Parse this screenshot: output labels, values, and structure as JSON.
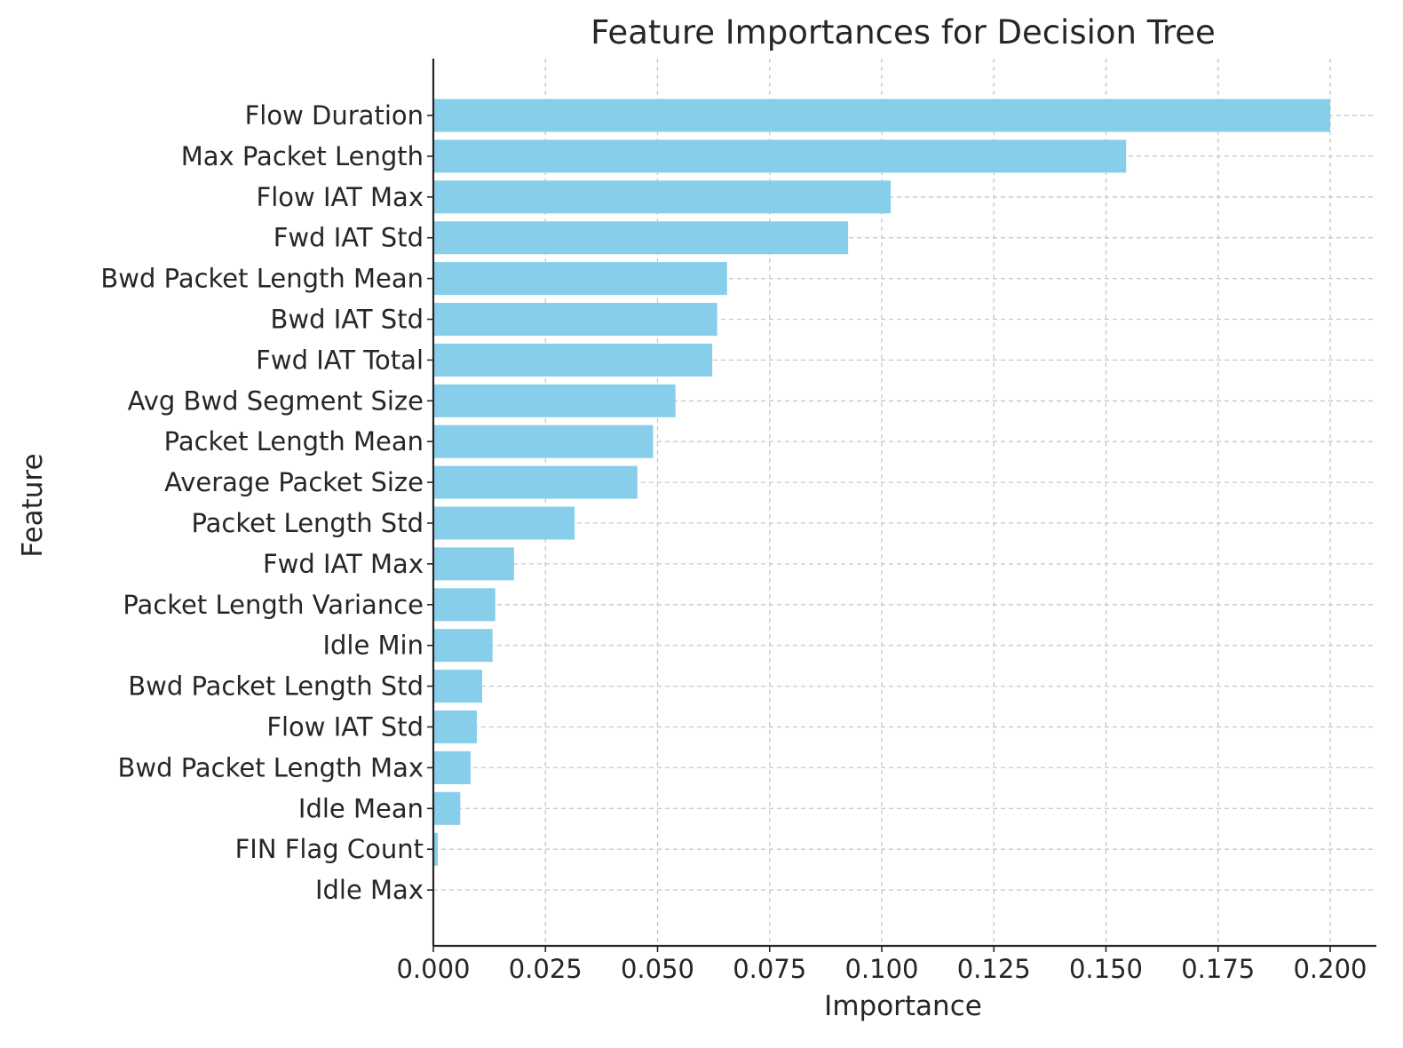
{
  "colors": {
    "bar": "#87ceeb",
    "text": "#262626"
  },
  "chart_data": {
    "type": "bar",
    "orientation": "horizontal",
    "title": "Feature Importances for Decision Tree",
    "xlabel": "Importance",
    "ylabel": "Feature",
    "xlim": [
      0,
      0.21
    ],
    "xticks": [
      0,
      0.025,
      0.05,
      0.075,
      0.1,
      0.125,
      0.15,
      0.175,
      0.2
    ],
    "xtick_labels": [
      "0.000",
      "0.025",
      "0.050",
      "0.075",
      "0.100",
      "0.125",
      "0.150",
      "0.175",
      "0.200"
    ],
    "grid": true,
    "categories": [
      "Flow Duration",
      "Max Packet Length",
      "Flow IAT Max",
      "Fwd IAT Std",
      "Bwd Packet Length Mean",
      "Bwd IAT Std",
      "Fwd IAT Total",
      "Avg Bwd Segment Size",
      "Packet Length Mean",
      "Average Packet Size",
      "Packet Length Std",
      "Fwd IAT Max",
      "Packet Length Variance",
      "Idle Min",
      "Bwd Packet Length Std",
      "Flow IAT Std",
      "Bwd Packet Length Max",
      "Idle Mean",
      "FIN Flag Count",
      "Idle Max"
    ],
    "values": [
      0.2,
      0.1545,
      0.102,
      0.0925,
      0.0655,
      0.0633,
      0.0622,
      0.054,
      0.049,
      0.0455,
      0.0315,
      0.018,
      0.0138,
      0.0132,
      0.0109,
      0.0097,
      0.0083,
      0.006,
      0.001,
      0.0
    ]
  }
}
